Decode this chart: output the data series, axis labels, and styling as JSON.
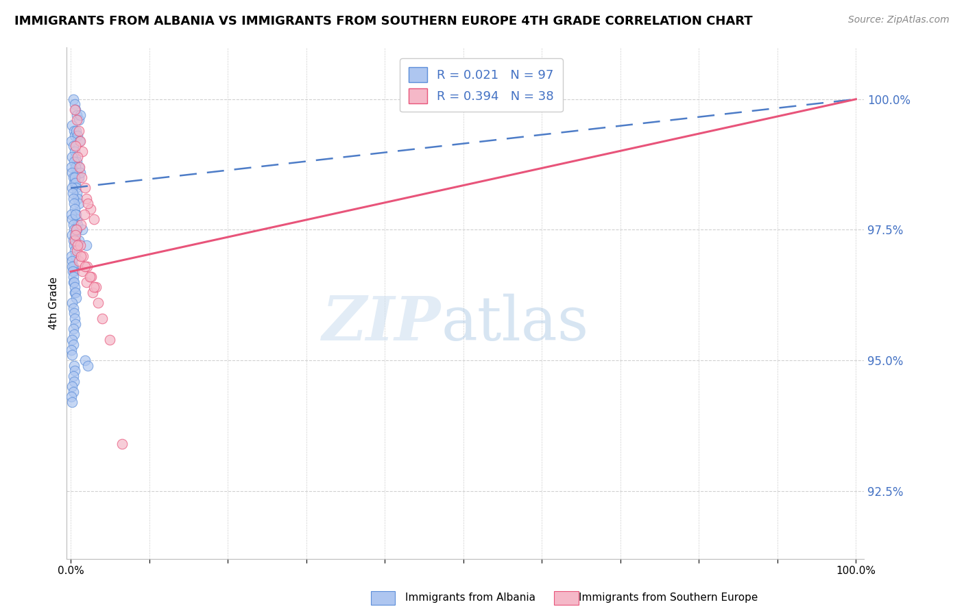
{
  "title": "IMMIGRANTS FROM ALBANIA VS IMMIGRANTS FROM SOUTHERN EUROPE 4TH GRADE CORRELATION CHART",
  "source": "Source: ZipAtlas.com",
  "ylabel": "4th Grade",
  "R_blue": 0.021,
  "N_blue": 97,
  "R_pink": 0.394,
  "N_pink": 38,
  "blue_color": "#aec6f0",
  "blue_edge_color": "#5b8dd9",
  "pink_color": "#f5b8c8",
  "pink_edge_color": "#e8547a",
  "trend_blue_color": "#4d7cc7",
  "trend_pink_color": "#e8547a",
  "legend_blue_label": "Immigrants from Albania",
  "legend_pink_label": "Immigrants from Southern Europe",
  "ymin": 91.2,
  "ymax": 101.0,
  "xmin": -0.5,
  "xmax": 101.0,
  "yticks": [
    92.5,
    95.0,
    97.5,
    100.0
  ],
  "ytick_labels": [
    "92.5%",
    "95.0%",
    "97.5%",
    "100.0%"
  ],
  "blue_trend_x0": 0,
  "blue_trend_y0": 98.3,
  "blue_trend_x1": 100,
  "blue_trend_y1": 100.0,
  "pink_trend_x0": 0,
  "pink_trend_y0": 96.7,
  "pink_trend_x1": 100,
  "pink_trend_y1": 100.0,
  "blue_x": [
    0.3,
    0.5,
    0.6,
    0.8,
    1.0,
    1.2,
    0.2,
    0.4,
    0.5,
    0.7,
    0.9,
    1.1,
    0.1,
    0.3,
    0.5,
    0.6,
    0.8,
    1.0,
    0.2,
    0.4,
    0.6,
    0.8,
    1.0,
    1.2,
    0.1,
    0.2,
    0.3,
    0.4,
    0.5,
    0.6,
    0.7,
    0.8,
    0.9,
    1.0,
    0.15,
    0.25,
    0.35,
    0.45,
    0.55,
    0.65,
    0.75,
    0.85,
    0.1,
    0.2,
    0.3,
    0.4,
    0.5,
    0.6,
    0.7,
    0.2,
    0.3,
    0.4,
    0.5,
    0.6,
    0.1,
    0.2,
    0.3,
    0.4,
    0.15,
    0.25,
    0.35,
    0.3,
    0.5,
    1.5,
    2.0,
    0.4,
    0.5,
    0.6,
    0.7,
    0.2,
    0.3,
    0.4,
    0.5,
    0.6,
    0.3,
    0.4,
    0.2,
    0.3,
    0.1,
    0.2,
    0.4,
    0.5,
    0.3,
    0.4,
    0.2,
    0.3,
    0.1,
    0.15,
    1.8,
    2.2,
    0.6,
    0.8,
    1.0
  ],
  "blue_y": [
    100.0,
    99.9,
    99.8,
    99.7,
    99.6,
    99.7,
    99.5,
    99.4,
    99.3,
    99.4,
    99.3,
    99.2,
    99.2,
    99.1,
    99.0,
    98.9,
    98.8,
    98.7,
    98.9,
    98.8,
    98.7,
    98.6,
    98.5,
    98.6,
    98.7,
    98.6,
    98.5,
    98.4,
    98.5,
    98.4,
    98.3,
    98.2,
    98.1,
    98.0,
    98.3,
    98.2,
    98.1,
    98.0,
    97.9,
    97.8,
    97.7,
    97.6,
    97.8,
    97.7,
    97.6,
    97.5,
    97.4,
    97.3,
    97.2,
    97.4,
    97.3,
    97.2,
    97.1,
    97.0,
    97.0,
    96.9,
    96.8,
    96.7,
    96.8,
    96.7,
    96.6,
    96.5,
    96.3,
    97.5,
    97.2,
    96.5,
    96.4,
    96.3,
    96.2,
    96.1,
    96.0,
    95.9,
    95.8,
    95.7,
    95.6,
    95.5,
    95.4,
    95.3,
    95.2,
    95.1,
    94.9,
    94.8,
    94.7,
    94.6,
    94.5,
    94.4,
    94.3,
    94.2,
    95.0,
    94.9,
    97.8,
    97.5,
    97.3
  ],
  "pink_x": [
    0.5,
    0.8,
    1.0,
    1.2,
    1.5,
    0.6,
    0.9,
    1.1,
    1.4,
    1.8,
    2.0,
    2.5,
    3.0,
    2.2,
    1.7,
    1.3,
    0.7,
    0.5,
    0.8,
    1.0,
    1.5,
    2.0,
    2.8,
    3.5,
    1.2,
    1.6,
    2.1,
    2.6,
    3.2,
    0.6,
    0.9,
    1.3,
    1.8,
    2.4,
    3.0,
    4.0,
    5.0,
    6.5
  ],
  "pink_y": [
    99.8,
    99.6,
    99.4,
    99.2,
    99.0,
    99.1,
    98.9,
    98.7,
    98.5,
    98.3,
    98.1,
    97.9,
    97.7,
    98.0,
    97.8,
    97.6,
    97.5,
    97.3,
    97.1,
    96.9,
    96.7,
    96.5,
    96.3,
    96.1,
    97.2,
    97.0,
    96.8,
    96.6,
    96.4,
    97.4,
    97.2,
    97.0,
    96.8,
    96.6,
    96.4,
    95.8,
    95.4,
    93.4
  ]
}
